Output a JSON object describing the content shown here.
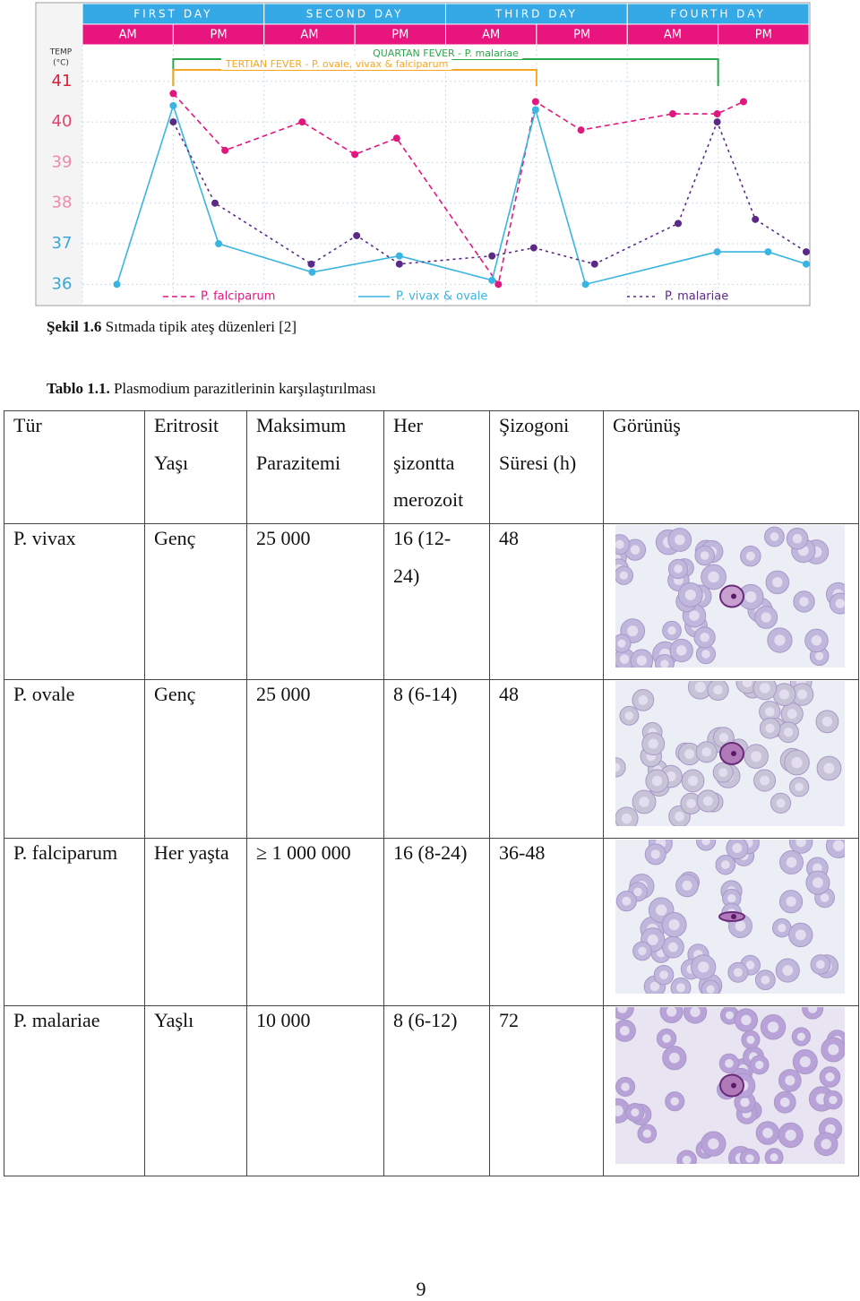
{
  "figure": {
    "chart_data": {
      "type": "line",
      "y_label": [
        "TEMP",
        "(°C)"
      ],
      "days": [
        "FIRST DAY",
        "SECOND DAY",
        "THIRD DAY",
        "FOURTH DAY"
      ],
      "periods": [
        "AM",
        "PM",
        "AM",
        "PM",
        "AM",
        "PM",
        "AM",
        "PM"
      ],
      "xlim": [
        0,
        8
      ],
      "ylim": [
        35.5,
        41.9
      ],
      "yticks": [
        36,
        37,
        38,
        39,
        40,
        41
      ],
      "ytick_colors": [
        "#3aa6d8",
        "#3aa6d8",
        "#f08aa8",
        "#f08aa8",
        "#e8406a",
        "#d8203a"
      ],
      "grid": true,
      "annotations": [
        {
          "text": "QUARTAN FEVER - P. malariae",
          "color": "#2aa84a",
          "x": [
            1,
            7
          ]
        },
        {
          "text": "TERTIAN FEVER - P. ovale, vivax & falciparum",
          "color": "#f5a623",
          "x": [
            1,
            5
          ]
        }
      ],
      "series": [
        {
          "name": "P. falciparum",
          "color": "#e0177f",
          "dash": "6 4",
          "x": [
            1.0,
            1.57,
            2.42,
            3.0,
            3.46,
            4.58,
            4.99,
            5.49,
            6.5,
            6.99,
            7.28
          ],
          "values": [
            40.7,
            39.3,
            40.0,
            39.2,
            39.6,
            36.0,
            40.5,
            39.8,
            40.2,
            40.2,
            40.5
          ]
        },
        {
          "name": "P. vivax & ovale",
          "color": "#3ab4e0",
          "dash": "none",
          "x": [
            0.38,
            1.0,
            1.5,
            2.53,
            3.49,
            4.51,
            4.99,
            5.54,
            6.99,
            7.55,
            7.97
          ],
          "values": [
            36.0,
            40.4,
            37.0,
            36.3,
            36.7,
            36.1,
            40.3,
            36.0,
            36.8,
            36.8,
            36.5
          ]
        },
        {
          "name": "P. malariae",
          "color": "#5b2a86",
          "dash": "3 4",
          "x": [
            1.0,
            1.46,
            2.52,
            3.02,
            3.49,
            4.51,
            4.97,
            5.64,
            6.56,
            6.99,
            7.41,
            7.97
          ],
          "values": [
            40.0,
            38.0,
            36.5,
            37.2,
            36.5,
            36.7,
            36.9,
            36.5,
            37.5,
            40.0,
            37.6,
            36.8
          ]
        }
      ]
    },
    "caption": {
      "label": "Şekil 1.6",
      "text": "Sıtmada tipik ateş düzenleri [2]"
    }
  },
  "table": {
    "label": "Tablo 1.1.",
    "title": "Plasmodium parazitlerinin karşılaştırılması",
    "header": [
      [
        "Tür"
      ],
      [
        "Eritrosit",
        "Yaşı"
      ],
      [
        "Maksimum",
        "Parazitemi"
      ],
      [
        "Her",
        "şizontta",
        "merozoit"
      ],
      [
        "Şizogoni",
        "Süresi (h)"
      ],
      [
        "Görünüş"
      ]
    ],
    "rows": [
      [
        [
          "P. vivax"
        ],
        [
          "Genç"
        ],
        [
          "25 000"
        ],
        [
          "16 (12-",
          "24)"
        ],
        [
          "48"
        ]
      ],
      [
        [
          "P. ovale"
        ],
        [
          "Genç"
        ],
        [
          "25 000"
        ],
        [
          "8 (6-14)"
        ],
        [
          "48"
        ]
      ],
      [
        [
          "P. falciparum"
        ],
        [
          "Her yaşta"
        ],
        [
          "≥ 1 000 000"
        ],
        [
          "16 (8-24)"
        ],
        [
          "36-48"
        ]
      ],
      [
        [
          "P. malariae"
        ],
        [
          "Yaşlı"
        ],
        [
          "10 000"
        ],
        [
          "8 (6-12)"
        ],
        [
          "72"
        ]
      ]
    ]
  },
  "page_number": "9"
}
